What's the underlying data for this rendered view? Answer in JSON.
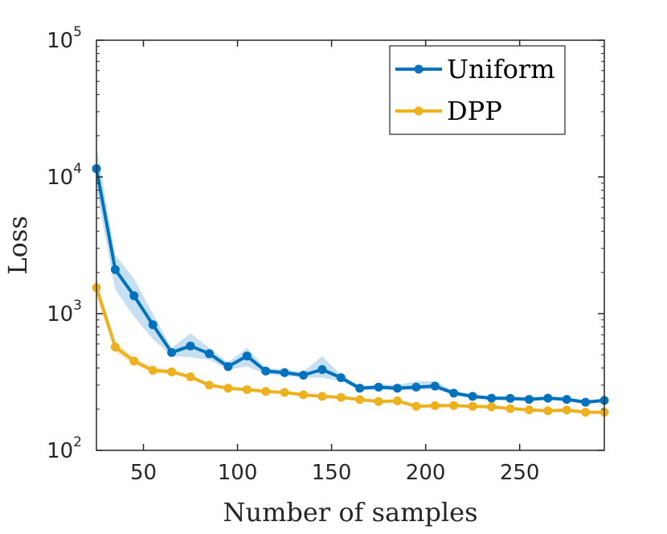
{
  "chart_data": {
    "type": "line",
    "title": "",
    "xlabel": "Number of samples",
    "ylabel": "Loss",
    "xlim": [
      25,
      295
    ],
    "ylim": [
      100,
      100000
    ],
    "yscale": "log",
    "x_ticks": [
      50,
      100,
      150,
      200,
      250
    ],
    "x_tick_labels": [
      "50",
      "100",
      "150",
      "200",
      "250"
    ],
    "y_ticks": [
      100,
      1000,
      10000,
      100000
    ],
    "y_tick_labels": [
      {
        "base": "10",
        "exp": "2"
      },
      {
        "base": "10",
        "exp": "3"
      },
      {
        "base": "10",
        "exp": "4"
      },
      {
        "base": "10",
        "exp": "5"
      }
    ],
    "grid": false,
    "legend_position": "top-right",
    "x": [
      25,
      35,
      45,
      55,
      65,
      75,
      85,
      95,
      105,
      115,
      125,
      135,
      145,
      155,
      165,
      175,
      185,
      195,
      205,
      215,
      225,
      235,
      245,
      255,
      265,
      275,
      285,
      295
    ],
    "series": [
      {
        "name": "Uniform",
        "color": "#0072BD",
        "values": [
          11500,
          2100,
          1350,
          830,
          520,
          580,
          510,
          410,
          490,
          380,
          370,
          355,
          390,
          340,
          285,
          290,
          285,
          290,
          295,
          262,
          248,
          241,
          240,
          236,
          241,
          236,
          225,
          232
        ],
        "lower": [
          8000,
          1500,
          950,
          650,
          490,
          480,
          460,
          390,
          410,
          360,
          350,
          340,
          340,
          320,
          275,
          278,
          275,
          275,
          280,
          255,
          240,
          235,
          232,
          230,
          235,
          230,
          220,
          226
        ],
        "upper": [
          17000,
          2700,
          1800,
          1000,
          560,
          720,
          560,
          440,
          560,
          400,
          390,
          375,
          490,
          355,
          295,
          305,
          300,
          320,
          320,
          272,
          256,
          250,
          248,
          244,
          250,
          244,
          232,
          240
        ]
      },
      {
        "name": "DPP",
        "color": "#EDB120",
        "values": [
          1550,
          570,
          450,
          385,
          375,
          345,
          300,
          285,
          278,
          270,
          265,
          255,
          248,
          244,
          235,
          228,
          230,
          210,
          212,
          213,
          210,
          208,
          202,
          198,
          195,
          197,
          190,
          190
        ],
        "lower": [
          1350,
          520,
          420,
          365,
          360,
          335,
          292,
          278,
          272,
          264,
          259,
          250,
          243,
          239,
          230,
          223,
          225,
          206,
          208,
          209,
          206,
          204,
          198,
          194,
          191,
          193,
          186,
          186
        ],
        "upper": [
          1750,
          620,
          480,
          405,
          390,
          355,
          308,
          292,
          284,
          276,
          271,
          260,
          253,
          249,
          240,
          233,
          235,
          214,
          216,
          217,
          214,
          212,
          206,
          202,
          199,
          201,
          194,
          194
        ]
      }
    ]
  }
}
